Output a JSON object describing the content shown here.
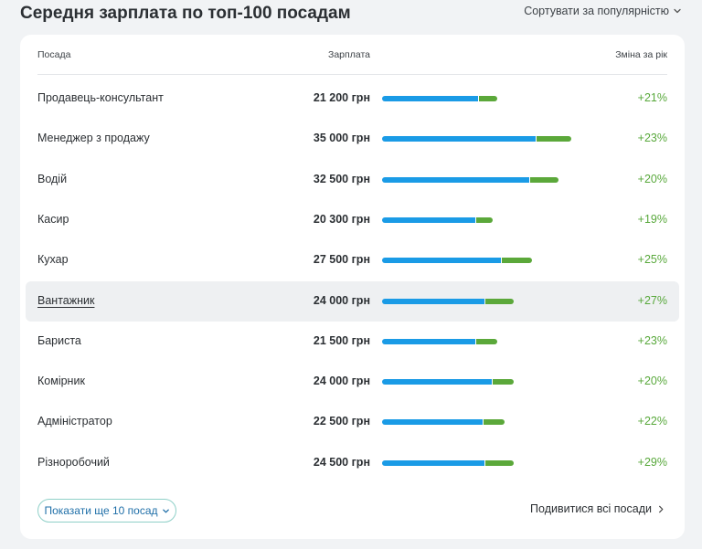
{
  "header": {
    "title": "Середня зарплата по топ-100 посадам",
    "sort_label": "Сортувати за популярністю"
  },
  "table": {
    "columns": {
      "position": "Посада",
      "salary": "Зарплата",
      "change": "Зміна за рік"
    },
    "rows": [
      {
        "name": "Продавець-консультант",
        "salary": "21 200 грн",
        "change": "+21%",
        "blue": 0.41,
        "green": 0.08
      },
      {
        "name": "Менеджер з продажу",
        "salary": "35 000 грн",
        "change": "+23%",
        "blue": 0.66,
        "green": 0.15
      },
      {
        "name": "Водій",
        "salary": "32 500 грн",
        "change": "+20%",
        "blue": 0.63,
        "green": 0.12
      },
      {
        "name": "Касир",
        "salary": "20 300 грн",
        "change": "+19%",
        "blue": 0.4,
        "green": 0.07
      },
      {
        "name": "Кухар",
        "salary": "27 500 грн",
        "change": "+25%",
        "blue": 0.51,
        "green": 0.13
      },
      {
        "name": "Вантажник",
        "salary": "24 000 грн",
        "change": "+27%",
        "blue": 0.44,
        "green": 0.12,
        "highlight": true
      },
      {
        "name": "Бариста",
        "salary": "21 500 грн",
        "change": "+23%",
        "blue": 0.4,
        "green": 0.09
      },
      {
        "name": "Комірник",
        "salary": "24 000 грн",
        "change": "+20%",
        "blue": 0.47,
        "green": 0.09
      },
      {
        "name": "Адміністратор",
        "salary": "22 500 грн",
        "change": "+22%",
        "blue": 0.43,
        "green": 0.09
      },
      {
        "name": "Різноробочий",
        "salary": "24 500 грн",
        "change": "+29%",
        "blue": 0.44,
        "green": 0.12
      }
    ]
  },
  "footer": {
    "more_label": "Показати ще 10 посад",
    "all_label": "Подивитися всі посади"
  },
  "colors": {
    "bar_base": "#1a9be6",
    "bar_growth": "#5ba83a",
    "positive": "#58a83b"
  },
  "icons": {
    "sort": "chevron-down-icon",
    "more": "chevron-down-icon",
    "all": "chevron-right-icon"
  }
}
